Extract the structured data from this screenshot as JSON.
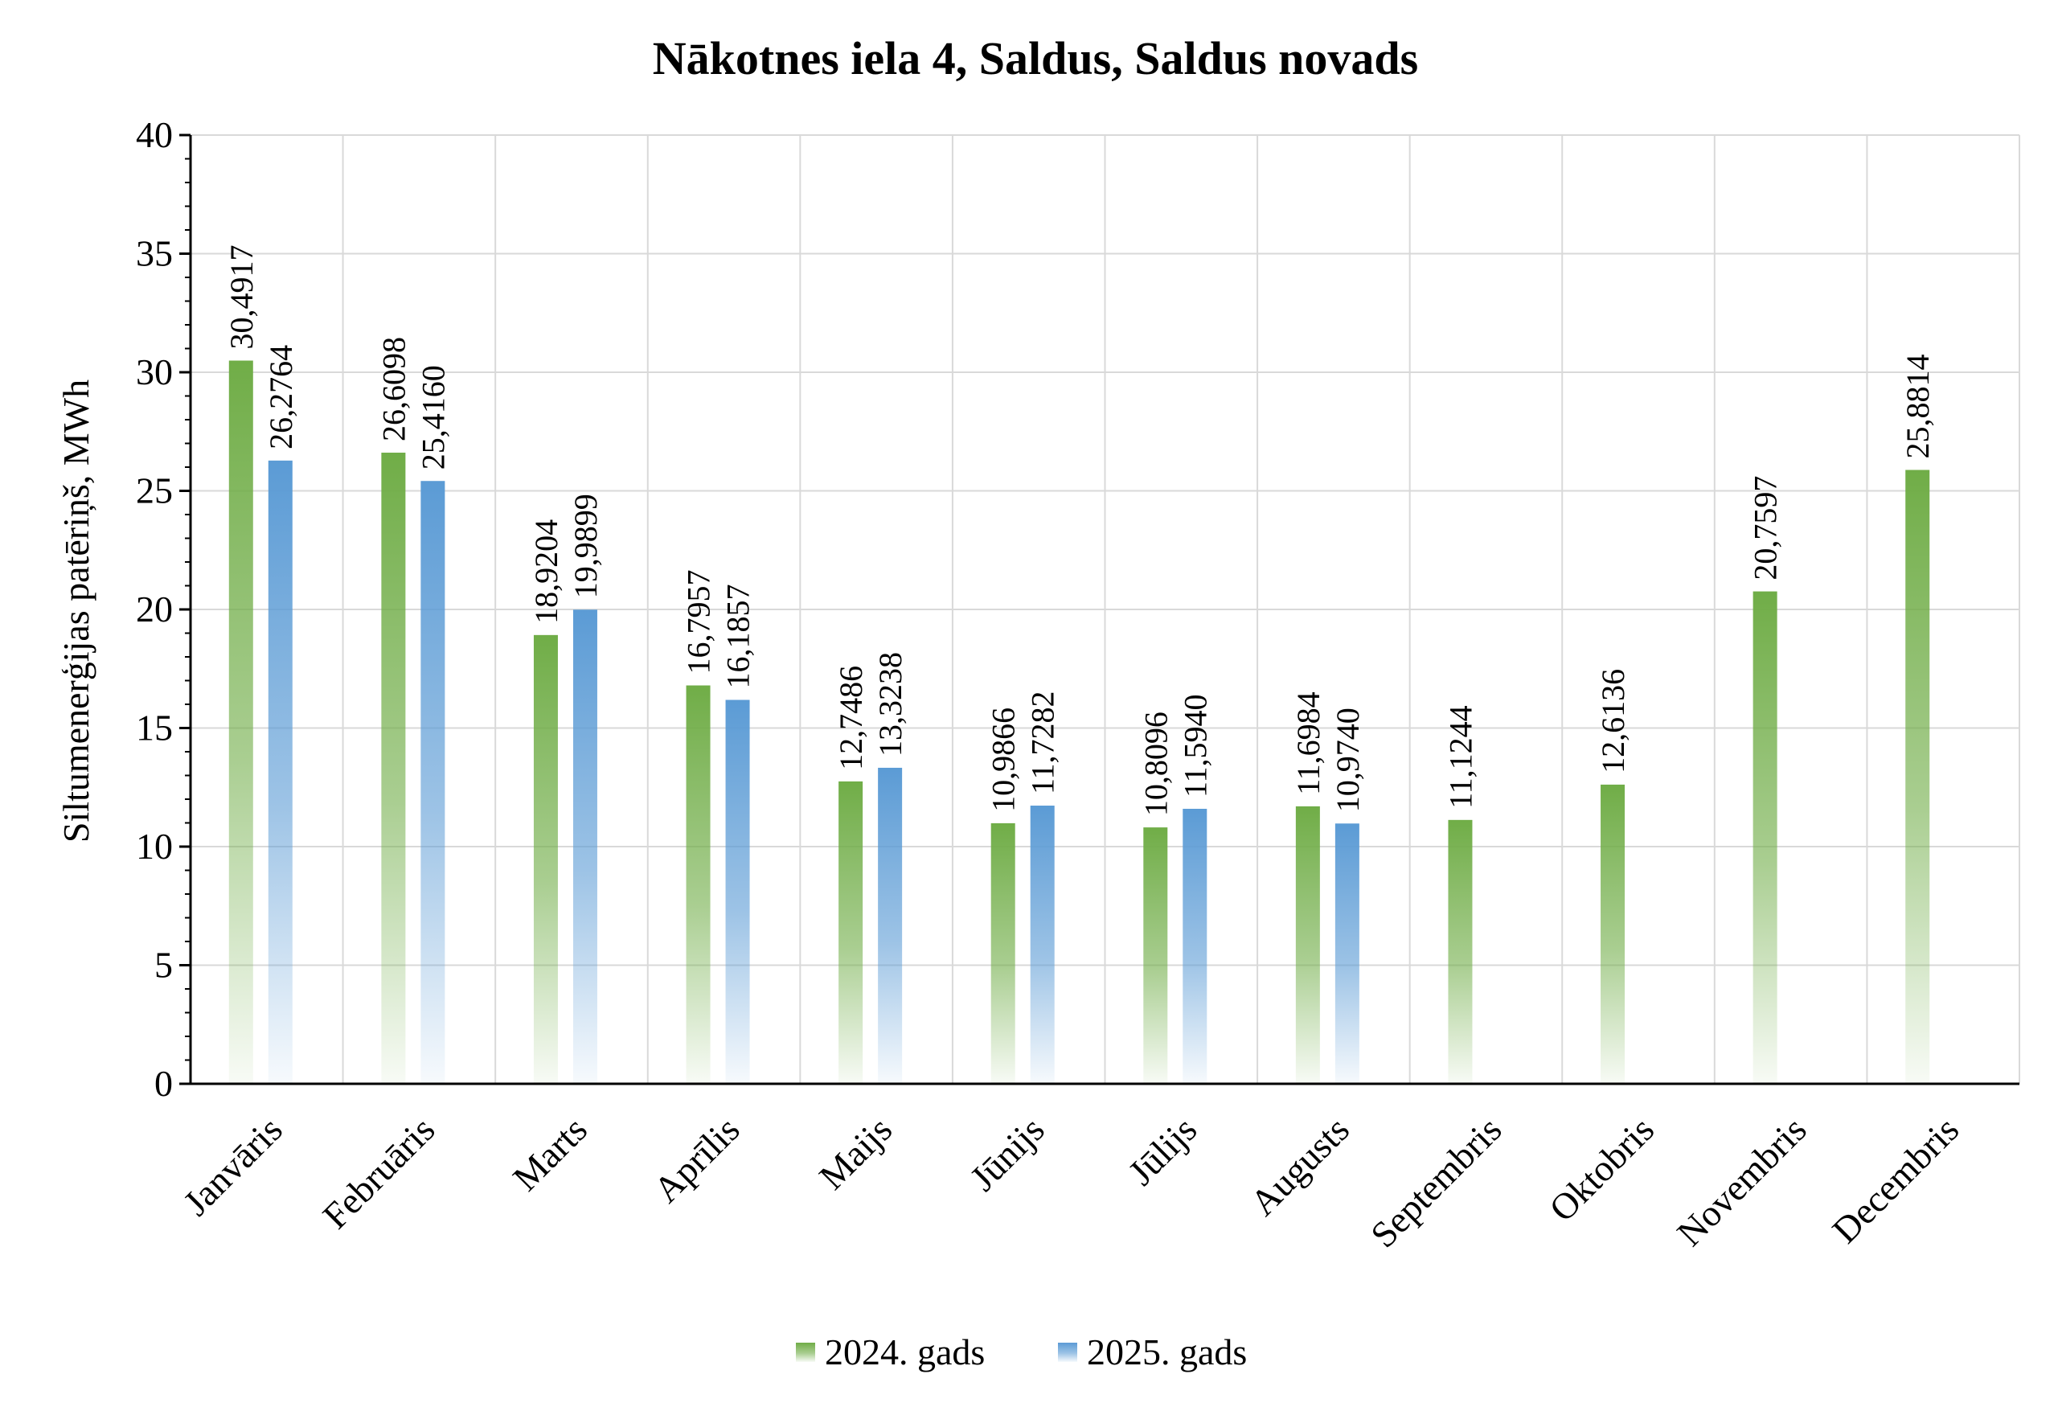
{
  "chart_data": {
    "type": "bar",
    "title": "Nākotnes iela 4, Saldus, Saldus novads",
    "xlabel": "",
    "ylabel": "Siltumenerģijas patēriņš, MWh",
    "ylim": [
      0,
      40
    ],
    "yticks": [
      0,
      5,
      10,
      15,
      20,
      25,
      30,
      35,
      40
    ],
    "grid": true,
    "legend_position": "bottom",
    "categories": [
      "Janvāris",
      "Februāris",
      "Marts",
      "Aprīlis",
      "Maijs",
      "Jūnijs",
      "Jūlijs",
      "Augusts",
      "Septembris",
      "Oktobris",
      "Novembris",
      "Decembris"
    ],
    "series": [
      {
        "name": "2024. gads",
        "color": "#70ad47",
        "values": [
          30.4917,
          26.6098,
          18.9204,
          16.7957,
          12.7486,
          10.9866,
          10.8096,
          11.6984,
          11.1244,
          12.6136,
          20.7597,
          25.8814
        ],
        "labels": [
          "30,4917",
          "26,6098",
          "18,9204",
          "16,7957",
          "12,7486",
          "10,9866",
          "10,8096",
          "11,6984",
          "11,1244",
          "12,6136",
          "20,7597",
          "25,8814"
        ]
      },
      {
        "name": "2025. gads",
        "color": "#5b9bd5",
        "values": [
          26.2764,
          25.416,
          19.9899,
          16.1857,
          13.3238,
          11.7282,
          11.594,
          10.974,
          null,
          null,
          null,
          null
        ],
        "labels": [
          "26,2764",
          "25,4160",
          "19,9899",
          "16,1857",
          "13,3238",
          "11,7282",
          "11,5940",
          "10,9740",
          null,
          null,
          null,
          null
        ]
      }
    ]
  }
}
